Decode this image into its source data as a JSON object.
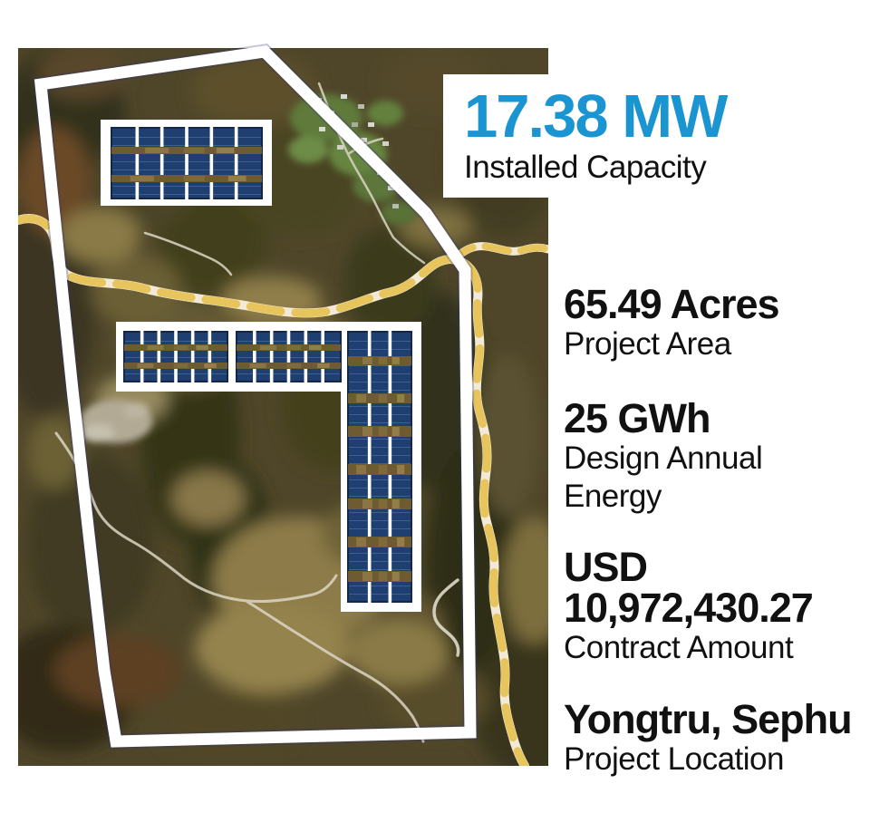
{
  "headline": {
    "value": "17.38 MW",
    "label": "Installed Capacity",
    "value_color": "#1b95d2"
  },
  "stats": [
    {
      "id": "project-area",
      "value_lines": [
        "65.49 Acres"
      ],
      "label_lines": [
        "Project Area"
      ]
    },
    {
      "id": "design-annual-energy",
      "value_lines": [
        "25 GWh"
      ],
      "label_lines": [
        "Design Annual",
        "Energy"
      ]
    },
    {
      "id": "contract-amount",
      "value_lines": [
        "USD",
        "10,972,430.27"
      ],
      "label_lines": [
        "Contract Amount"
      ]
    },
    {
      "id": "project-location",
      "value_lines": [
        "Yongtru, Sephu"
      ],
      "label_lines": [
        "Project Location"
      ]
    }
  ],
  "map": {
    "colors": {
      "boundary_outline": "#ffffff",
      "road_yellow": "#e8c55c",
      "solar_panel_blue": "#1e3f70",
      "solar_frame_white": "#ffffff",
      "panel_stripe_brown": "#6f5b31",
      "terrain_base": "#4f4629"
    }
  }
}
